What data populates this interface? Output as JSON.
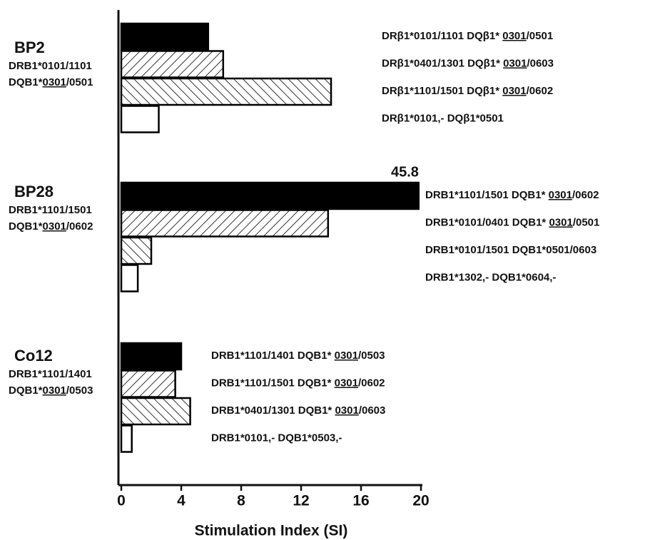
{
  "chart_data": {
    "type": "bar",
    "orientation": "horizontal",
    "x_label": "Stimulation Index (SI)",
    "xlim": [
      0,
      20
    ],
    "xticks": [
      0,
      4,
      8,
      12,
      16,
      20
    ],
    "categories": [
      "BP2",
      "BP28",
      "Co12"
    ],
    "category_alleles": [
      [
        [
          {
            "text": "DRB1*0101/1101"
          }
        ],
        [
          {
            "text": "DQB1*"
          },
          {
            "text": "0301",
            "underline": true
          },
          {
            "text": "/0501"
          }
        ]
      ],
      [
        [
          {
            "text": "DRB1*1101/1501"
          }
        ],
        [
          {
            "text": "DQB1*"
          },
          {
            "text": "0301",
            "underline": true
          },
          {
            "text": "/0602"
          }
        ]
      ],
      [
        [
          {
            "text": "DRB1*1101/1401"
          }
        ],
        [
          {
            "text": "DQB1*"
          },
          {
            "text": "0301",
            "underline": true
          },
          {
            "text": "/0503"
          }
        ]
      ]
    ],
    "series": [
      {
        "pattern": "solid",
        "color": "#000000",
        "values": [
          5.8,
          45.8,
          4.0
        ],
        "value_labels": [
          null,
          "45.8",
          null
        ],
        "bar_labels": [
          [
            {
              "text": "DRβ1*0101/1101 DQβ1* "
            },
            {
              "text": "0301",
              "underline": true
            },
            {
              "text": "/0501"
            }
          ],
          [
            {
              "text": "DRB1*1101/1501 DQB1* "
            },
            {
              "text": "0301",
              "underline": true
            },
            {
              "text": "/0602"
            }
          ],
          [
            {
              "text": "DRB1*1101/1401 DQB1* "
            },
            {
              "text": "0301",
              "underline": true
            },
            {
              "text": "/0503"
            }
          ]
        ]
      },
      {
        "pattern": "hatch-forward",
        "color": "#000000",
        "values": [
          6.8,
          13.8,
          3.6
        ],
        "bar_labels": [
          [
            {
              "text": "DRβ1*0401/1301 DQβ1* "
            },
            {
              "text": "0301",
              "underline": true
            },
            {
              "text": "/0603"
            }
          ],
          [
            {
              "text": "DRB1*0101/0401 DQB1* "
            },
            {
              "text": "0301",
              "underline": true
            },
            {
              "text": "/0501"
            }
          ],
          [
            {
              "text": "DRB1*1101/1501 DQB1* "
            },
            {
              "text": "0301",
              "underline": true
            },
            {
              "text": "/0602"
            }
          ]
        ]
      },
      {
        "pattern": "hatch-backward",
        "color": "#000000",
        "values": [
          14.0,
          2.0,
          4.6
        ],
        "bar_labels": [
          [
            {
              "text": "DRβ1*1101/1501 DQβ1* "
            },
            {
              "text": "0301",
              "underline": true
            },
            {
              "text": "/0602"
            }
          ],
          [
            {
              "text": "DRB1*0101/1501 DQB1*0501/0603"
            }
          ],
          [
            {
              "text": "DRB1*0401/1301 DQB1* "
            },
            {
              "text": "0301",
              "underline": true
            },
            {
              "text": "/0603"
            }
          ]
        ]
      },
      {
        "pattern": "empty",
        "color": "#000000",
        "values": [
          2.5,
          1.1,
          0.7
        ],
        "bar_labels": [
          [
            {
              "text": "DRβ1*0101,- DQβ1*0501"
            }
          ],
          [
            {
              "text": "DRB1*1302,- DQB1*0604,-"
            }
          ],
          [
            {
              "text": "DRB1*0101,- DQB1*0503,-"
            }
          ]
        ]
      }
    ]
  }
}
